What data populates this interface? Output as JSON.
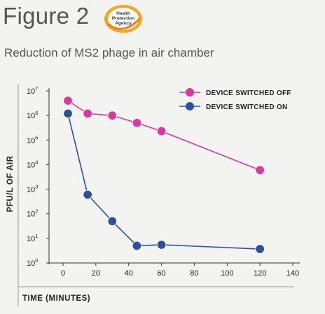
{
  "figure": {
    "label": "Figure 2",
    "logo_text": [
      "Health",
      "Protection",
      "Agency"
    ]
  },
  "chart_data": {
    "type": "line",
    "title": "Reduction of MS2 phage in air chamber",
    "xlabel": "TIME (MINUTES)",
    "ylabel": "PFU/L OF AIR",
    "xlim": [
      0,
      140
    ],
    "ylim": [
      1,
      10000000
    ],
    "y_scale": "log",
    "x_ticks": [
      0,
      20,
      40,
      60,
      80,
      100,
      120,
      140
    ],
    "y_ticks": [
      {
        "value": 1,
        "base": "10",
        "exp": "0"
      },
      {
        "value": 10,
        "base": "10",
        "exp": "1"
      },
      {
        "value": 100,
        "base": "10",
        "exp": "2"
      },
      {
        "value": 1000,
        "base": "10",
        "exp": "3"
      },
      {
        "value": 10000,
        "base": "10",
        "exp": "4"
      },
      {
        "value": 100000,
        "base": "10",
        "exp": "5"
      },
      {
        "value": 1000000,
        "base": "10",
        "exp": "6"
      },
      {
        "value": 10000000,
        "base": "10",
        "exp": "7"
      }
    ],
    "legend_position": "top-right",
    "grid": false,
    "series": [
      {
        "name": "DEVICE SWITCHED OFF",
        "color": "#d63a9c",
        "points": [
          {
            "x": 3,
            "y": 4000000
          },
          {
            "x": 15,
            "y": 1200000
          },
          {
            "x": 30,
            "y": 1000000
          },
          {
            "x": 45,
            "y": 500000
          },
          {
            "x": 60,
            "y": 230000
          },
          {
            "x": 120,
            "y": 6000
          }
        ]
      },
      {
        "name": "DEVICE SWITCHED ON",
        "color": "#2f4f9a",
        "points": [
          {
            "x": 3,
            "y": 1200000
          },
          {
            "x": 15,
            "y": 600
          },
          {
            "x": 30,
            "y": 50
          },
          {
            "x": 45,
            "y": 5
          },
          {
            "x": 60,
            "y": 5.5
          },
          {
            "x": 120,
            "y": 3.7
          }
        ]
      }
    ]
  }
}
